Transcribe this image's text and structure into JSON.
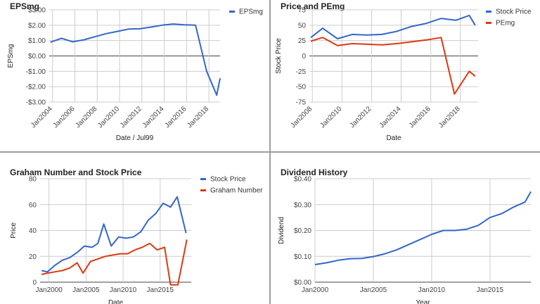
{
  "chart_data": [
    {
      "type": "line",
      "title": "EPSmg",
      "xlabel": "Date / Jul99",
      "ylabel": "EPSmg",
      "x_ticks": [
        "Jan2004",
        "Jan2006",
        "Jan2008",
        "Jan2010",
        "Jan2012",
        "Jan2014",
        "Jan2016",
        "Jan2018"
      ],
      "y_ticks": [
        "$3.00",
        "$2.00",
        "$1.00",
        "$0.00",
        "-$1.00",
        "-$2.00",
        "-$3.00"
      ],
      "xlim": [
        2003.7,
        2019.0
      ],
      "ylim": [
        -3,
        3
      ],
      "legend_position": "top-right",
      "series": [
        {
          "name": "EPSmg",
          "color": "#3366cc",
          "points": [
            [
              2003.8,
              0.9
            ],
            [
              2004.8,
              1.15
            ],
            [
              2005.8,
              0.92
            ],
            [
              2006.8,
              1.05
            ],
            [
              2007.8,
              1.25
            ],
            [
              2008.8,
              1.45
            ],
            [
              2009.8,
              1.6
            ],
            [
              2010.8,
              1.75
            ],
            [
              2011.8,
              1.77
            ],
            [
              2012.8,
              1.88
            ],
            [
              2013.8,
              2.0
            ],
            [
              2014.8,
              2.08
            ],
            [
              2015.8,
              2.03
            ],
            [
              2016.8,
              2.0
            ],
            [
              2017.8,
              -1.0
            ],
            [
              2018.7,
              -2.55
            ],
            [
              2019.0,
              -1.45
            ]
          ]
        }
      ]
    },
    {
      "type": "line",
      "title": "Price and PEmg",
      "xlabel": "Date",
      "ylabel": "Stock Price",
      "x_ticks": [
        "Jan2008",
        "Jan2010",
        "Jan2012",
        "Jan2014",
        "Jan2016",
        "Jan2018"
      ],
      "y_ticks": [
        "75",
        "50",
        "25",
        "0",
        "-25",
        "-50",
        "-75"
      ],
      "xlim": [
        2007.8,
        2019.2
      ],
      "ylim": [
        -75,
        75
      ],
      "legend_position": "top-right",
      "series": [
        {
          "name": "Stock Price",
          "color": "#3366cc",
          "points": [
            [
              2007.9,
              30
            ],
            [
              2008.7,
              45
            ],
            [
              2009.7,
              28
            ],
            [
              2010.7,
              35
            ],
            [
              2011.7,
              34
            ],
            [
              2012.7,
              35
            ],
            [
              2013.7,
              40
            ],
            [
              2014.7,
              48
            ],
            [
              2015.7,
              53
            ],
            [
              2016.7,
              61
            ],
            [
              2017.7,
              58
            ],
            [
              2018.6,
              66
            ],
            [
              2019.0,
              50
            ]
          ]
        },
        {
          "name": "PEmg",
          "color": "#dc3912",
          "points": [
            [
              2007.9,
              24
            ],
            [
              2008.7,
              30
            ],
            [
              2009.7,
              17
            ],
            [
              2010.7,
              20
            ],
            [
              2011.7,
              19
            ],
            [
              2012.7,
              18
            ],
            [
              2013.7,
              20
            ],
            [
              2014.7,
              23
            ],
            [
              2015.7,
              26
            ],
            [
              2016.7,
              30
            ],
            [
              2017.6,
              -62
            ],
            [
              2018.6,
              -25
            ],
            [
              2019.0,
              -33
            ]
          ]
        }
      ]
    },
    {
      "type": "line",
      "title": "Graham Number and Stock Price",
      "xlabel": "Date",
      "ylabel": "Price",
      "x_ticks": [
        "Jan2000",
        "Jan2005",
        "Jan2010",
        "Jan2015"
      ],
      "y_ticks": [
        "80",
        "60",
        "40",
        "20",
        "0"
      ],
      "xlim": [
        1998.8,
        2019.2
      ],
      "ylim": [
        0,
        80
      ],
      "legend_position": "top-right",
      "series": [
        {
          "name": "Stock Price",
          "color": "#3366cc",
          "points": [
            [
              1999.0,
              9
            ],
            [
              1999.8,
              8
            ],
            [
              2000.8,
              13
            ],
            [
              2001.8,
              17
            ],
            [
              2002.8,
              19
            ],
            [
              2003.8,
              23
            ],
            [
              2004.8,
              28
            ],
            [
              2005.8,
              27
            ],
            [
              2006.6,
              30
            ],
            [
              2007.4,
              45
            ],
            [
              2008.4,
              28
            ],
            [
              2009.4,
              35
            ],
            [
              2010.4,
              34
            ],
            [
              2011.4,
              35
            ],
            [
              2012.4,
              39
            ],
            [
              2013.4,
              48
            ],
            [
              2014.4,
              53
            ],
            [
              2015.4,
              61
            ],
            [
              2016.4,
              58
            ],
            [
              2017.3,
              66
            ],
            [
              2018.5,
              38
            ]
          ]
        },
        {
          "name": "Graham Number",
          "color": "#dc3912",
          "points": [
            [
              1999.0,
              6
            ],
            [
              1999.8,
              7
            ],
            [
              2000.8,
              8
            ],
            [
              2001.8,
              9
            ],
            [
              2002.8,
              11
            ],
            [
              2003.8,
              15
            ],
            [
              2004.6,
              7
            ],
            [
              2005.6,
              16
            ],
            [
              2006.6,
              18
            ],
            [
              2007.6,
              20
            ],
            [
              2008.6,
              21
            ],
            [
              2009.6,
              22
            ],
            [
              2010.6,
              22
            ],
            [
              2011.6,
              25
            ],
            [
              2012.6,
              27
            ],
            [
              2013.6,
              30
            ],
            [
              2014.6,
              25
            ],
            [
              2015.6,
              27
            ],
            [
              2016.4,
              -2
            ],
            [
              2017.4,
              -2
            ],
            [
              2018.6,
              33
            ]
          ]
        }
      ]
    },
    {
      "type": "line",
      "title": "Dividend History",
      "xlabel": "Year",
      "ylabel": "Dividend",
      "x_ticks": [
        "Jan2000",
        "Jan2005",
        "Jan2010",
        "Jan2015"
      ],
      "y_ticks": [
        "$0.40",
        "$0.30",
        "$0.20",
        "$0.10",
        "$0.00"
      ],
      "xlim": [
        2000.0,
        2018.5
      ],
      "ylim": [
        0,
        0.4
      ],
      "legend_position": "none",
      "series": [
        {
          "name": "",
          "color": "#3366cc",
          "points": [
            [
              2000.0,
              0.068
            ],
            [
              2001.0,
              0.075
            ],
            [
              2002.0,
              0.085
            ],
            [
              2003.0,
              0.091
            ],
            [
              2004.0,
              0.092
            ],
            [
              2005.0,
              0.099
            ],
            [
              2006.0,
              0.11
            ],
            [
              2007.0,
              0.125
            ],
            [
              2008.0,
              0.145
            ],
            [
              2009.0,
              0.165
            ],
            [
              2010.0,
              0.185
            ],
            [
              2011.0,
              0.2
            ],
            [
              2012.0,
              0.2
            ],
            [
              2013.0,
              0.205
            ],
            [
              2014.0,
              0.22
            ],
            [
              2015.0,
              0.25
            ],
            [
              2016.0,
              0.265
            ],
            [
              2017.0,
              0.29
            ],
            [
              2018.0,
              0.31
            ],
            [
              2018.5,
              0.35
            ]
          ]
        }
      ]
    }
  ]
}
